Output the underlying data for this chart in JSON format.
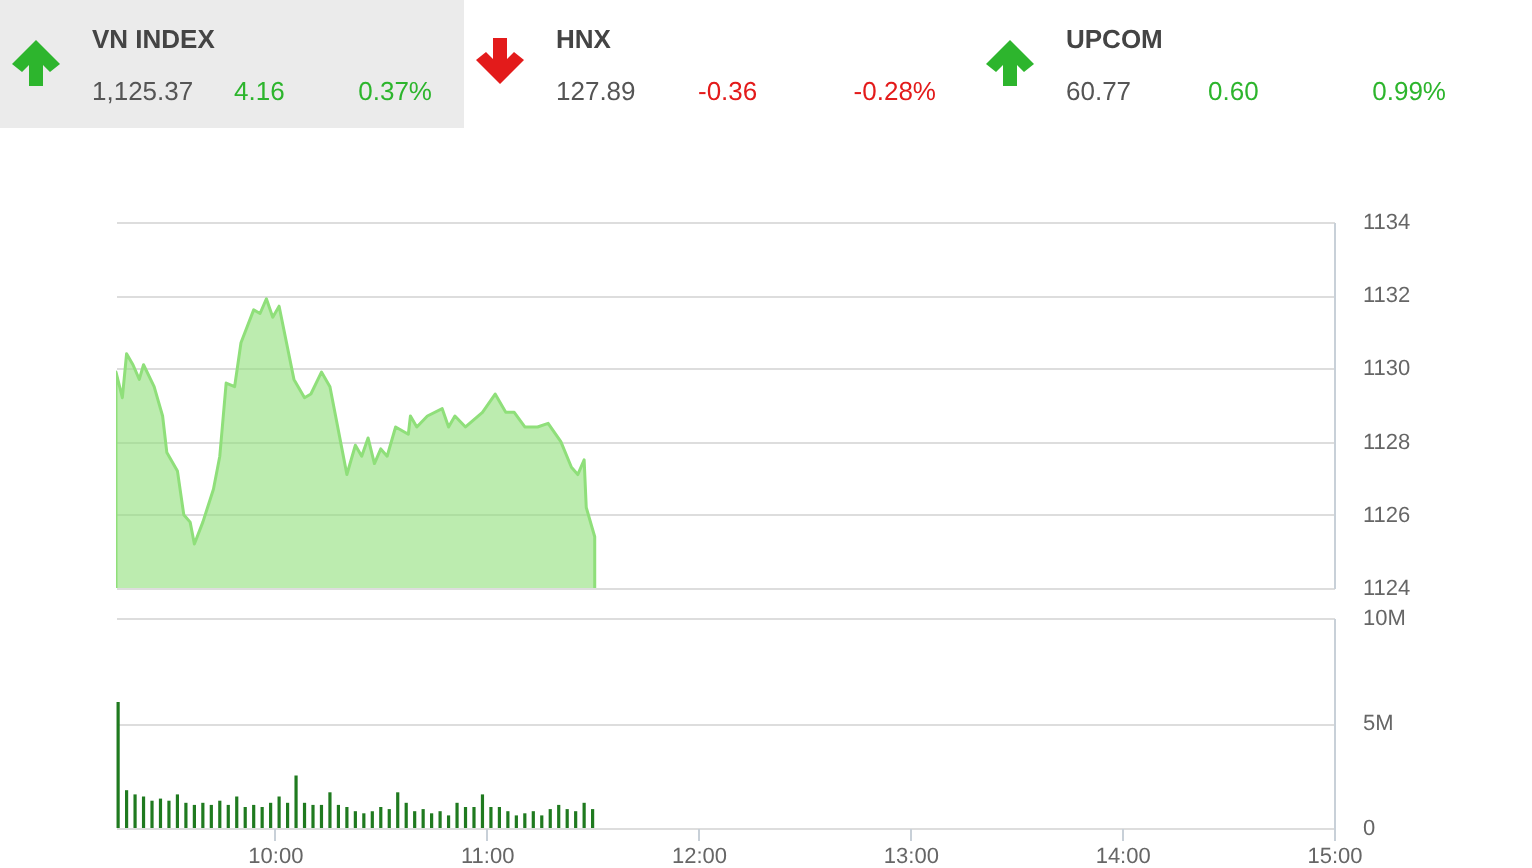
{
  "chart_data": [
    {
      "type": "other",
      "categories": [
        "VN INDEX",
        "HNX",
        "UPCOM"
      ],
      "value_labels": [
        "4.16",
        "-0.36",
        "0.60"
      ],
      "colors": [
        "#2db52d",
        "#e31b1b",
        "#2db52d"
      ],
      "annotations": [
        "1,125.37",
        "0.37%",
        "127.89",
        "-0.28%",
        "60.77",
        "0.99%"
      ]
    },
    {
      "type": "area",
      "x": [
        9.25,
        9.28,
        9.3,
        9.33,
        9.36,
        9.38,
        9.43,
        9.47,
        9.49,
        9.54,
        9.57,
        9.6,
        9.62,
        9.66,
        9.71,
        9.74,
        9.77,
        9.81,
        9.84,
        9.9,
        9.93,
        9.96,
        9.99,
        10.02,
        10.09,
        10.14,
        10.17,
        10.22,
        10.26,
        10.31,
        10.34,
        10.38,
        10.41,
        10.44,
        10.47,
        10.5,
        10.53,
        10.57,
        10.63,
        10.64,
        10.67,
        10.72,
        10.79,
        10.82,
        10.85,
        10.9,
        10.98,
        11.04,
        11.09,
        11.13,
        11.18,
        11.24,
        11.29,
        11.35,
        11.4,
        11.43,
        11.46,
        11.47,
        11.51
      ],
      "series": [
        {
          "color": "#8fdf7a",
          "values": [
            1129.9,
            1129.2,
            1130.4,
            1130.1,
            1129.7,
            1130.1,
            1129.5,
            1128.7,
            1127.7,
            1127.2,
            1126.0,
            1125.8,
            1125.2,
            1125.8,
            1126.7,
            1127.6,
            1129.6,
            1129.5,
            1130.7,
            1131.6,
            1131.5,
            1131.9,
            1131.4,
            1131.7,
            1129.7,
            1129.2,
            1129.3,
            1129.9,
            1129.5,
            1128.0,
            1127.1,
            1127.9,
            1127.6,
            1128.1,
            1127.4,
            1127.8,
            1127.6,
            1128.4,
            1128.2,
            1128.7,
            1128.4,
            1128.7,
            1128.9,
            1128.4,
            1128.7,
            1128.4,
            1128.8,
            1129.3,
            1128.8,
            1128.8,
            1128.4,
            1128.4,
            1128.5,
            1128.0,
            1127.3,
            1127.1,
            1127.5,
            1126.2,
            1125.4
          ]
        }
      ],
      "xlim": [
        9.25,
        15
      ],
      "ylim": [
        1124,
        1134
      ],
      "yticks": [
        1124,
        1126,
        1128,
        1130,
        1132,
        1134
      ],
      "grid": "y",
      "tick_labels": "y",
      "legend": false
    },
    {
      "type": "bar",
      "x": [
        9.26,
        9.3,
        9.34,
        9.38,
        9.42,
        9.46,
        9.5,
        9.54,
        9.58,
        9.62,
        9.66,
        9.7,
        9.74,
        9.78,
        9.82,
        9.86,
        9.9,
        9.94,
        9.98,
        10.02,
        10.06,
        10.1,
        10.14,
        10.18,
        10.22,
        10.26,
        10.3,
        10.34,
        10.38,
        10.42,
        10.46,
        10.5,
        10.54,
        10.58,
        10.62,
        10.66,
        10.7,
        10.74,
        10.78,
        10.82,
        10.86,
        10.9,
        10.94,
        10.98,
        11.02,
        11.06,
        11.1,
        11.14,
        11.18,
        11.22,
        11.26,
        11.3,
        11.34,
        11.38,
        11.42,
        11.46,
        11.5
      ],
      "series": [
        {
          "color": "#1f7a1f",
          "values": [
            6.0,
            1.8,
            1.6,
            1.5,
            1.3,
            1.4,
            1.3,
            1.6,
            1.2,
            1.1,
            1.2,
            1.1,
            1.3,
            1.1,
            1.5,
            1.0,
            1.1,
            1.0,
            1.2,
            1.5,
            1.2,
            2.5,
            1.2,
            1.1,
            1.1,
            1.7,
            1.1,
            1.0,
            0.8,
            0.7,
            0.8,
            1.0,
            0.9,
            1.7,
            1.2,
            0.8,
            0.9,
            0.7,
            0.8,
            0.6,
            1.2,
            1.0,
            1.0,
            1.6,
            1.0,
            1.0,
            0.8,
            0.6,
            0.7,
            0.8,
            0.6,
            0.9,
            1.1,
            0.9,
            0.8,
            1.2,
            0.9
          ]
        }
      ],
      "xlim": [
        9.25,
        15
      ],
      "xticks": [
        {
          "value": 10,
          "label": "10:00"
        },
        {
          "value": 11,
          "label": "11:00"
        },
        {
          "value": 12,
          "label": "12:00"
        },
        {
          "value": 13,
          "label": "13:00"
        },
        {
          "value": 14,
          "label": "14:00"
        },
        {
          "value": 15,
          "label": "15:00"
        }
      ],
      "ylim": [
        0,
        10
      ],
      "yticks": [
        0,
        {
          "value": 5,
          "label": "5M"
        },
        {
          "value": 10,
          "label": "10M"
        }
      ],
      "grid": "y",
      "legend": false
    }
  ]
}
